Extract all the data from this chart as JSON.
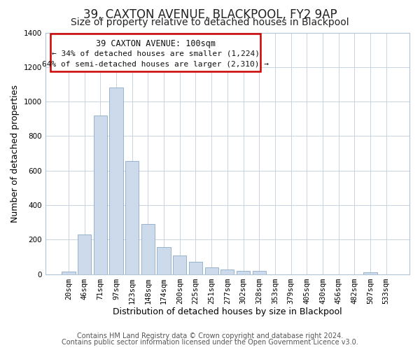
{
  "title": "39, CAXTON AVENUE, BLACKPOOL, FY2 9AP",
  "subtitle": "Size of property relative to detached houses in Blackpool",
  "xlabel": "Distribution of detached houses by size in Blackpool",
  "ylabel": "Number of detached properties",
  "categories": [
    "20sqm",
    "46sqm",
    "71sqm",
    "97sqm",
    "123sqm",
    "148sqm",
    "174sqm",
    "200sqm",
    "225sqm",
    "251sqm",
    "277sqm",
    "302sqm",
    "328sqm",
    "353sqm",
    "379sqm",
    "405sqm",
    "430sqm",
    "456sqm",
    "482sqm",
    "507sqm",
    "533sqm"
  ],
  "values": [
    15,
    228,
    918,
    1082,
    654,
    292,
    157,
    107,
    72,
    40,
    25,
    18,
    18,
    0,
    0,
    0,
    0,
    0,
    0,
    10,
    0
  ],
  "bar_color": "#ccdaeb",
  "bar_edgecolor": "#8aaac8",
  "annotation_box_color": "#ffffff",
  "annotation_border_color": "#cc0000",
  "annotation_title": "39 CAXTON AVENUE: 100sqm",
  "annotation_line1": "← 34% of detached houses are smaller (1,224)",
  "annotation_line2": "64% of semi-detached houses are larger (2,310) →",
  "ylim": [
    0,
    1400
  ],
  "yticks": [
    0,
    200,
    400,
    600,
    800,
    1000,
    1200,
    1400
  ],
  "footer1": "Contains HM Land Registry data © Crown copyright and database right 2024.",
  "footer2": "Contains public sector information licensed under the Open Government Licence v3.0.",
  "background_color": "#ffffff",
  "plot_bg_color": "#ffffff",
  "title_fontsize": 12,
  "subtitle_fontsize": 10,
  "axis_label_fontsize": 9,
  "tick_fontsize": 7.5,
  "footer_fontsize": 7
}
